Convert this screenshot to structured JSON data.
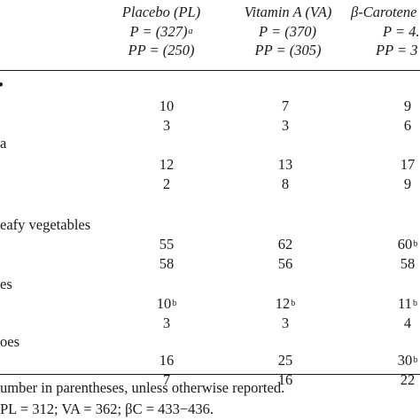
{
  "columns": [
    {
      "name": "Placebo (PL)",
      "p": "P = (327)",
      "p_sup": "a",
      "pp": "PP = (250)"
    },
    {
      "name": "Vitamin A (VA)",
      "p": "P = (370)",
      "p_sup": "",
      "pp": "PP = (305)"
    },
    {
      "name": "β-Carotene",
      "p": "P = 4.",
      "p_sup": "",
      "pp": "PP = 3"
    }
  ],
  "groups": [
    {
      "label": "•",
      "rows": [
        {
          "cells": [
            {
              "v": "10",
              "s": ""
            },
            {
              "v": "7",
              "s": ""
            },
            {
              "v": "9",
              "s": ""
            }
          ]
        },
        {
          "cells": [
            {
              "v": "3",
              "s": ""
            },
            {
              "v": "3",
              "s": ""
            },
            {
              "v": "6",
              "s": ""
            }
          ]
        }
      ]
    },
    {
      "label": "a",
      "rows": [
        {
          "cells": [
            {
              "v": "12",
              "s": ""
            },
            {
              "v": "13",
              "s": ""
            },
            {
              "v": "17",
              "s": ""
            }
          ]
        },
        {
          "cells": [
            {
              "v": "2",
              "s": ""
            },
            {
              "v": "8",
              "s": ""
            },
            {
              "v": "9",
              "s": ""
            }
          ]
        }
      ]
    },
    {
      "label": "eafy vegetables",
      "rows": [
        {
          "cells": [
            {
              "v": "55",
              "s": ""
            },
            {
              "v": "62",
              "s": ""
            },
            {
              "v": "60",
              "s": "b"
            }
          ]
        },
        {
          "cells": [
            {
              "v": "58",
              "s": ""
            },
            {
              "v": "56",
              "s": ""
            },
            {
              "v": "58",
              "s": ""
            }
          ]
        }
      ]
    },
    {
      "label": "es",
      "rows": [
        {
          "cells": [
            {
              "v": "10",
              "s": "b"
            },
            {
              "v": "12",
              "s": "b"
            },
            {
              "v": "11",
              "s": "b"
            }
          ]
        },
        {
          "cells": [
            {
              "v": "3",
              "s": ""
            },
            {
              "v": "3",
              "s": ""
            },
            {
              "v": "4",
              "s": ""
            }
          ]
        }
      ]
    },
    {
      "label": "oes",
      "rows": [
        {
          "cells": [
            {
              "v": "16",
              "s": ""
            },
            {
              "v": "25",
              "s": ""
            },
            {
              "v": "30",
              "s": "b"
            }
          ]
        },
        {
          "cells": [
            {
              "v": "7",
              "s": ""
            },
            {
              "v": "16",
              "s": ""
            },
            {
              "v": "22",
              "s": ""
            }
          ]
        }
      ]
    }
  ],
  "footnotes": [
    "umber in parentheses, unless otherwise reported.",
    "PL = 312; VA = 362; βC = 433−436."
  ]
}
